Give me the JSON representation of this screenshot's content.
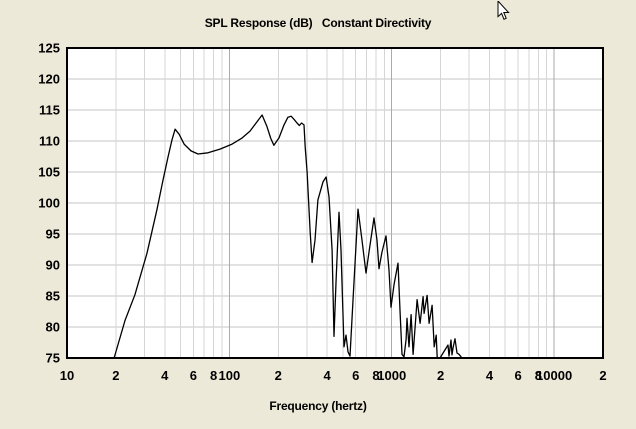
{
  "window": {
    "background": "#ece9d8",
    "frame_color": "#84a5dd",
    "bottom_strip_color": "#f1f0ea"
  },
  "chart_data": {
    "type": "line",
    "title": "SPL Response (dB)   Constant Directivity",
    "xlabel": "Frequency (hertz)",
    "x_scale": "log",
    "xlim": [
      10,
      20000
    ],
    "ylim": [
      75,
      125
    ],
    "grid": true,
    "legend_position": "none",
    "y_ticks": [
      125,
      120,
      115,
      110,
      105,
      100,
      95,
      90,
      85,
      80,
      75
    ],
    "x_ticks": [
      {
        "f": 10,
        "label": "10"
      },
      {
        "f": 20,
        "label": "2"
      },
      {
        "f": 40,
        "label": "4"
      },
      {
        "f": 60,
        "label": "6"
      },
      {
        "f": 80,
        "label": "8"
      },
      {
        "f": 100,
        "label": "100"
      },
      {
        "f": 200,
        "label": "2"
      },
      {
        "f": 400,
        "label": "4"
      },
      {
        "f": 600,
        "label": "6"
      },
      {
        "f": 800,
        "label": "8"
      },
      {
        "f": 1000,
        "label": "1000"
      },
      {
        "f": 2000,
        "label": "2"
      },
      {
        "f": 4000,
        "label": "4"
      },
      {
        "f": 6000,
        "label": "6"
      },
      {
        "f": 8000,
        "label": "8"
      },
      {
        "f": 10000,
        "label": "10000"
      },
      {
        "f": 20000,
        "label": "2"
      }
    ],
    "colors": {
      "plot_bg": "#ffffff",
      "plot_border": "#000000",
      "curve": "#000000",
      "grid_minor": "#d6d6d6",
      "grid_major": "#ababab",
      "grid_horizontal": "#c6c6c6"
    },
    "series": [
      {
        "name": "SPL Response",
        "points": [
          [
            19.5,
            75.0
          ],
          [
            22.8,
            81.1
          ],
          [
            26.2,
            85.2
          ],
          [
            31.1,
            91.9
          ],
          [
            35.8,
            98.9
          ],
          [
            39.0,
            103.7
          ],
          [
            41.9,
            107.4
          ],
          [
            44.3,
            110.2
          ],
          [
            46.3,
            111.9
          ],
          [
            49.0,
            111.1
          ],
          [
            52.6,
            109.5
          ],
          [
            58.0,
            108.4
          ],
          [
            64.1,
            107.9
          ],
          [
            73.9,
            108.1
          ],
          [
            87.5,
            108.7
          ],
          [
            104,
            109.5
          ],
          [
            120,
            110.5
          ],
          [
            134,
            111.6
          ],
          [
            146,
            112.9
          ],
          [
            159,
            114.2
          ],
          [
            170,
            112.4
          ],
          [
            180,
            110.4
          ],
          [
            188,
            109.3
          ],
          [
            202,
            110.5
          ],
          [
            217,
            112.6
          ],
          [
            229,
            113.8
          ],
          [
            240,
            114.0
          ],
          [
            250,
            113.5
          ],
          [
            261,
            112.9
          ],
          [
            270,
            112.5
          ],
          [
            278,
            112.9
          ],
          [
            288,
            112.6
          ],
          [
            293,
            109.0
          ],
          [
            301,
            105.0
          ],
          [
            314,
            95.5
          ],
          [
            323,
            90.4
          ],
          [
            337,
            94.0
          ],
          [
            351,
            100.5
          ],
          [
            377,
            103.4
          ],
          [
            394,
            104.2
          ],
          [
            411,
            101.0
          ],
          [
            429,
            92.4
          ],
          [
            441,
            78.5
          ],
          [
            454,
            87.6
          ],
          [
            473,
            98.5
          ],
          [
            487,
            92.4
          ],
          [
            508,
            76.8
          ],
          [
            523,
            78.7
          ],
          [
            538,
            76.0
          ],
          [
            553,
            75.3
          ],
          [
            577,
            84.3
          ],
          [
            620,
            99.0
          ],
          [
            656,
            94.0
          ],
          [
            694,
            88.7
          ],
          [
            735,
            93.2
          ],
          [
            777,
            97.6
          ],
          [
            811,
            94.0
          ],
          [
            835,
            89.4
          ],
          [
            871,
            92.1
          ],
          [
            922,
            94.7
          ],
          [
            962,
            89.2
          ],
          [
            990,
            83.2
          ],
          [
            1032,
            86.8
          ],
          [
            1093,
            90.3
          ],
          [
            1124,
            82.7
          ],
          [
            1157,
            75.6
          ],
          [
            1190,
            75.2
          ],
          [
            1225,
            78.0
          ],
          [
            1242,
            81.4
          ],
          [
            1278,
            76.8
          ],
          [
            1315,
            82.0
          ],
          [
            1353,
            75.6
          ],
          [
            1392,
            80.0
          ],
          [
            1432,
            84.4
          ],
          [
            1495,
            80.6
          ],
          [
            1560,
            84.9
          ],
          [
            1582,
            82.2
          ],
          [
            1651,
            85.1
          ],
          [
            1699,
            80.6
          ],
          [
            1773,
            83.5
          ],
          [
            1825,
            76.8
          ],
          [
            1877,
            78.7
          ],
          [
            1904,
            75.1
          ],
          [
            1983,
            75.0
          ],
          [
            2221,
            77.1
          ],
          [
            2252,
            75.3
          ],
          [
            2317,
            77.9
          ],
          [
            2350,
            75.5
          ],
          [
            2383,
            76.6
          ],
          [
            2452,
            78.1
          ],
          [
            2523,
            75.8
          ],
          [
            2595,
            75.6
          ],
          [
            2708,
            75.0
          ]
        ]
      }
    ]
  }
}
